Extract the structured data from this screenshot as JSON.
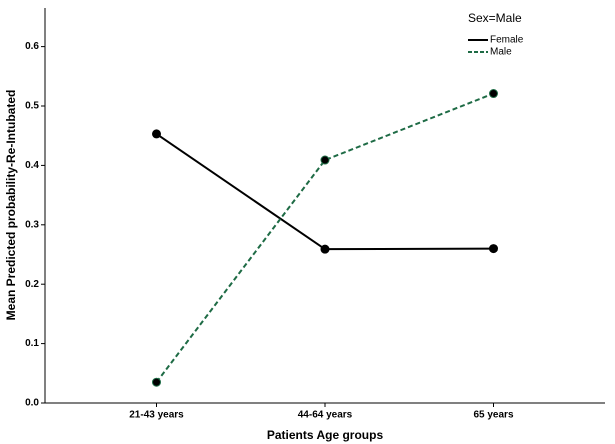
{
  "chart_data": {
    "type": "line",
    "x_label": "Patients Age groups",
    "y_label": "Mean Predicted probability-Re-Intubated",
    "categories": [
      "21-43 years",
      "44-64 years",
      "65 years"
    ],
    "series": [
      {
        "name": "Female",
        "color": "#000000",
        "dash": "solid",
        "values": [
          0.453,
          0.259,
          0.26
        ]
      },
      {
        "name": "Male",
        "color": "#1e6b45",
        "dash": "dashed",
        "values": [
          0.035,
          0.409,
          0.521
        ]
      }
    ],
    "ylim": [
      0,
      0.665
    ],
    "yticks": [
      {
        "value": 0,
        "label": "0.0"
      },
      0.1,
      0.2,
      0.3,
      0.4,
      0.5,
      0.6
    ],
    "legend_title": "Sex=Male",
    "legend": "top-right",
    "grid": false
  }
}
